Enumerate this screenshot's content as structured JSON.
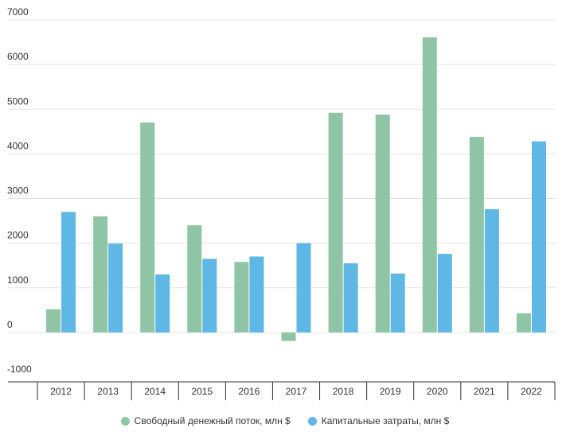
{
  "chart_data": {
    "type": "bar",
    "categories": [
      "2012",
      "2013",
      "2014",
      "2015",
      "2016",
      "2017",
      "2018",
      "2019",
      "2020",
      "2021",
      "2022"
    ],
    "series": [
      {
        "name": "Свободный денежный поток, млн $",
        "color": "#8fc5a5",
        "values": [
          520,
          2600,
          4700,
          2400,
          1580,
          -190,
          4920,
          4880,
          6610,
          4380,
          430
        ]
      },
      {
        "name": "Капитальные затраты, млн $",
        "color": "#5fb7e5",
        "values": [
          2700,
          1990,
          1300,
          1650,
          1700,
          2000,
          1550,
          1320,
          1760,
          2760,
          4280
        ]
      }
    ],
    "ylim": [
      -1000,
      7000
    ],
    "yticks": [
      "7000",
      "6000",
      "5000",
      "4000",
      "3000",
      "2000",
      "1000",
      "0",
      "-1000"
    ],
    "ytick_values": [
      7000,
      6000,
      5000,
      4000,
      3000,
      2000,
      1000,
      0,
      -1000
    ],
    "grid": true,
    "legend_position": "bottom"
  }
}
